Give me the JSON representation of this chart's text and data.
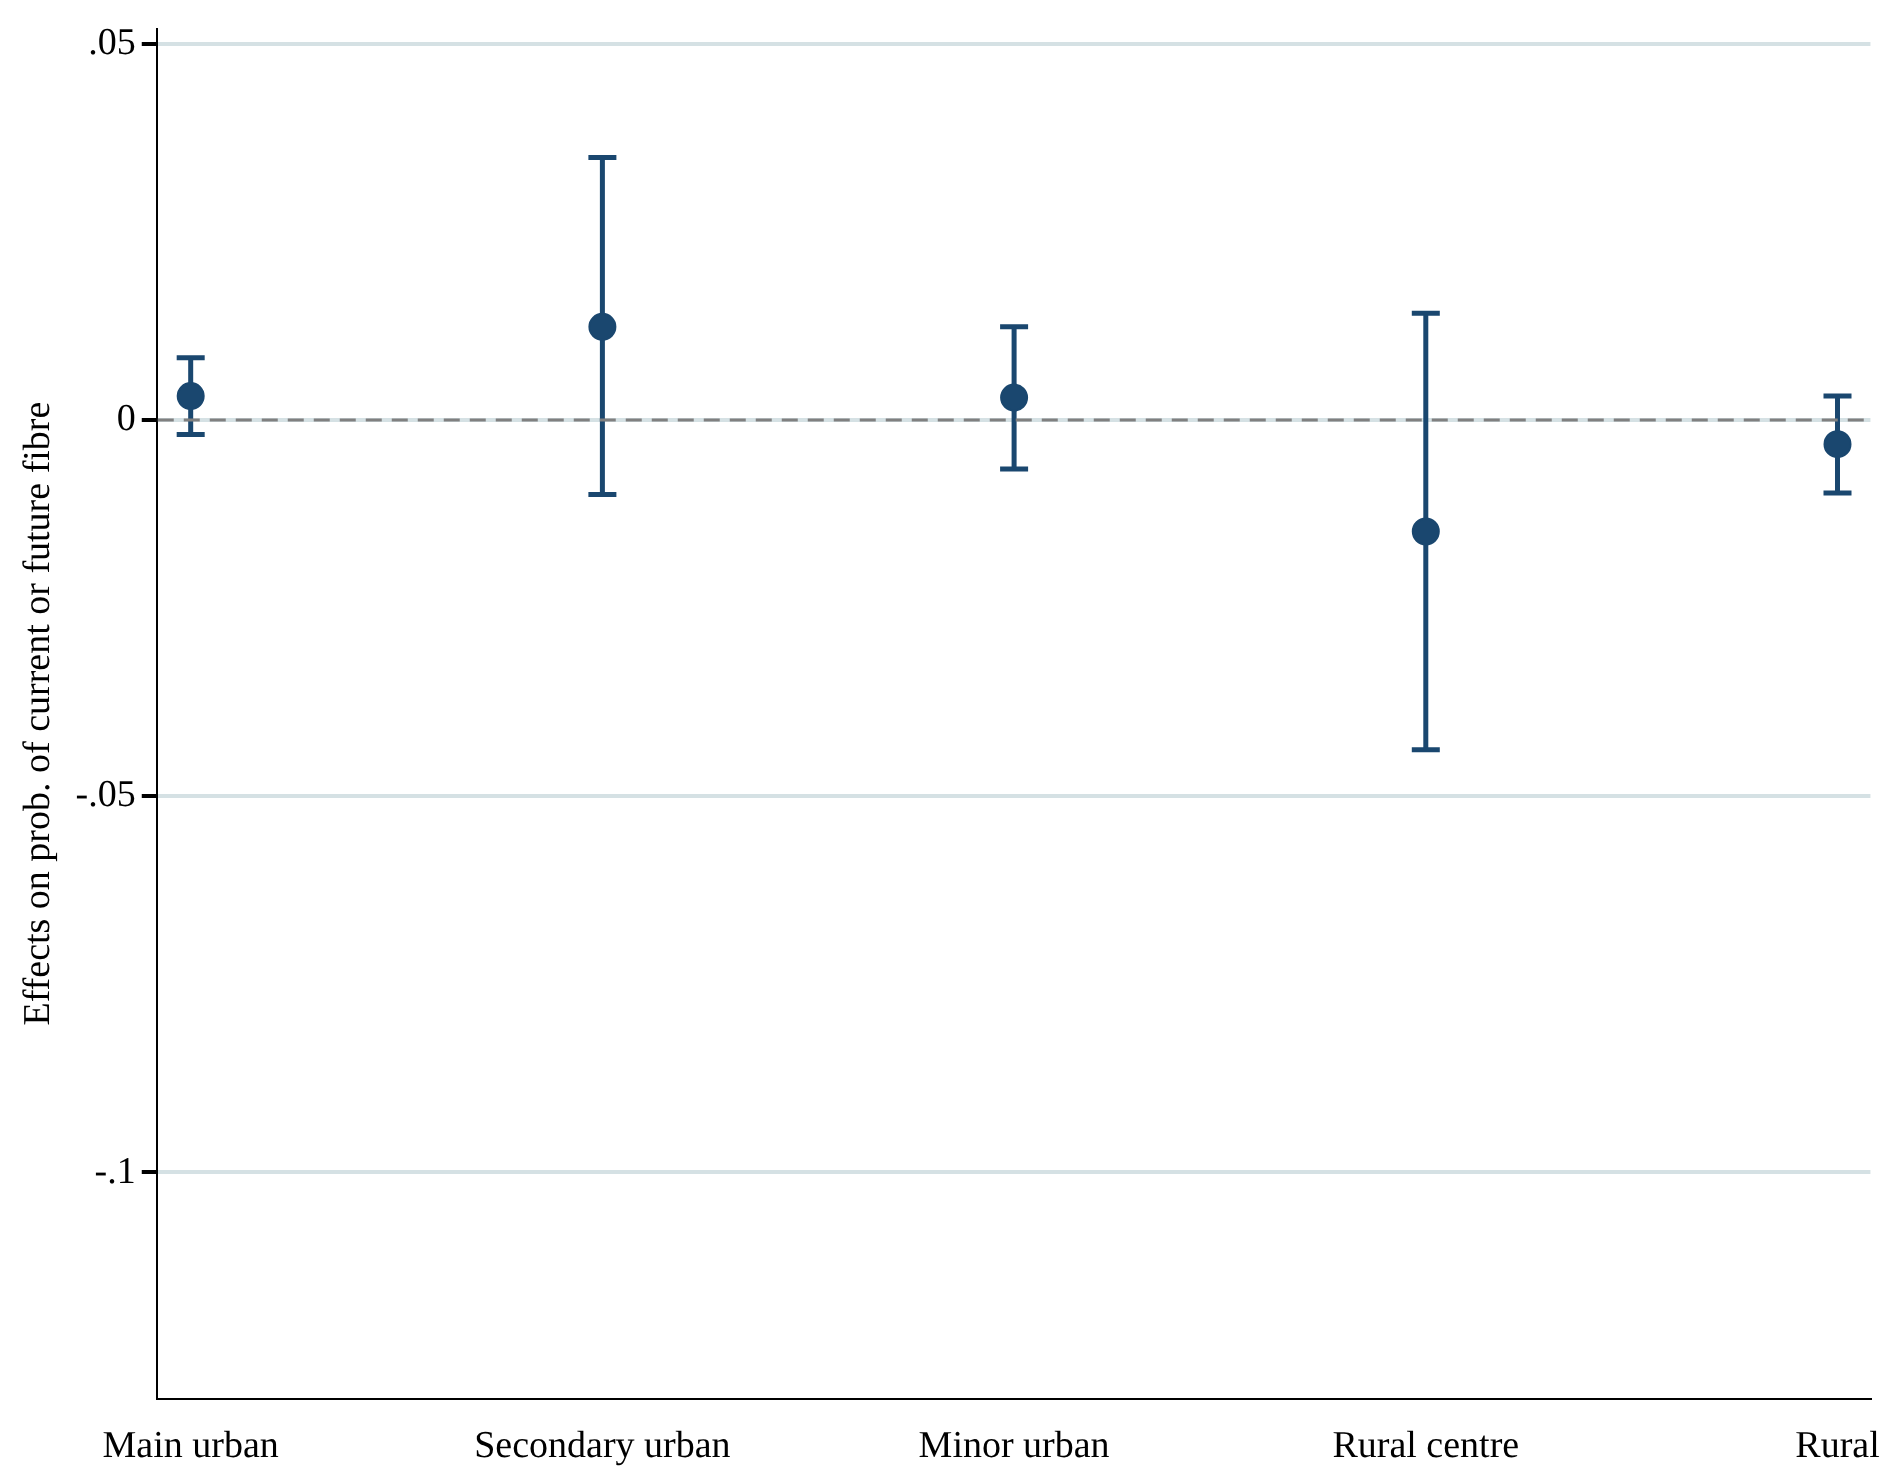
{
  "chart_data": {
    "type": "scatter",
    "ylabel": "Effects on prob. of current or future fibre",
    "categories": [
      "Main urban",
      "Secondary urban",
      "Minor urban",
      "Rural centre",
      "Rural"
    ],
    "values": [
      0.0032,
      0.0124,
      0.003,
      -0.0148,
      -0.0032
    ],
    "errors": [
      [
        -0.0019,
        0.0083
      ],
      [
        -0.0099,
        0.0349
      ],
      [
        -0.0065,
        0.0124
      ],
      [
        -0.0438,
        0.0142
      ],
      [
        -0.0097,
        0.0032
      ]
    ],
    "color": "#1a476f",
    "marker": "circle",
    "ylim": [
      -0.13,
      0.052
    ],
    "yticks": [
      {
        "value": 0.05,
        "label": ".05"
      },
      0,
      {
        "value": -0.05,
        "label": "-.05"
      },
      {
        "value": -0.1,
        "label": "-.1"
      }
    ],
    "grid": "y",
    "legend": false,
    "ref_lines": [
      {
        "axis": "y",
        "value": 0,
        "color": "#808080",
        "line_style": "dashed"
      }
    ]
  }
}
